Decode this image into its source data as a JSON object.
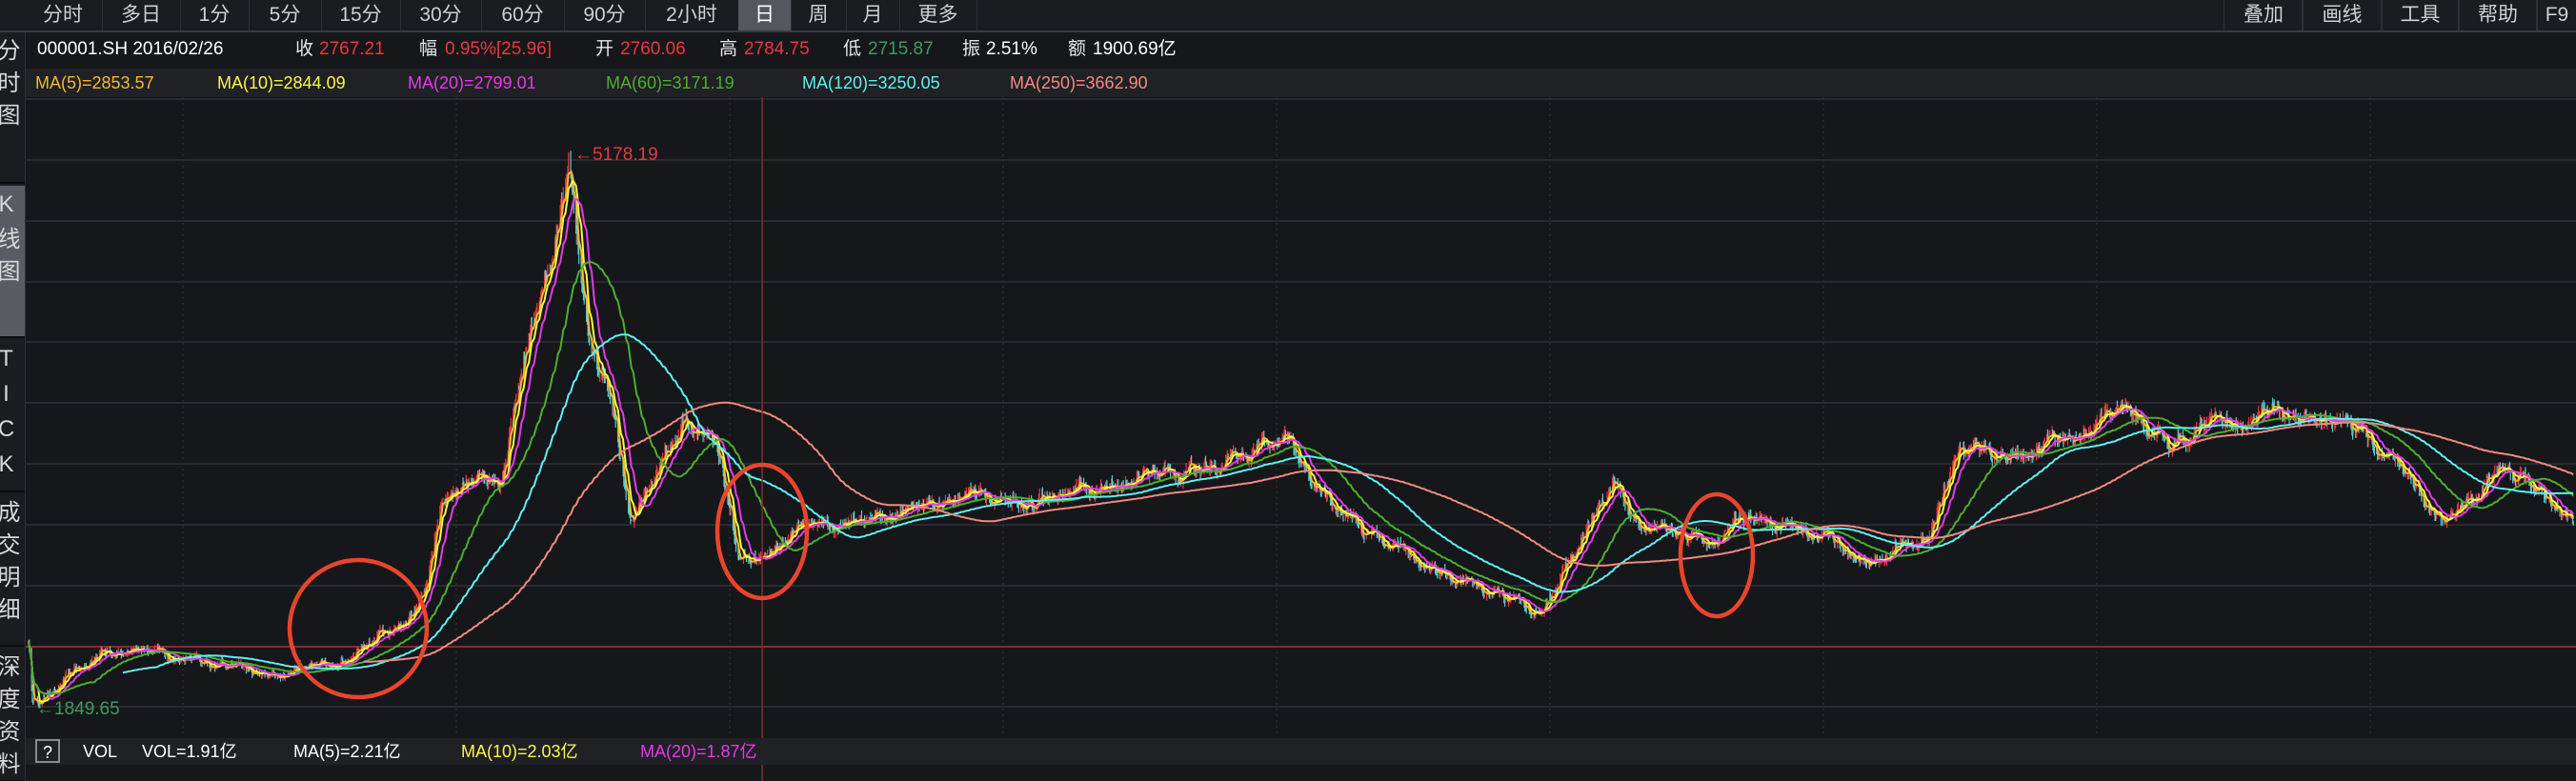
{
  "colors": {
    "up": "#e8373d",
    "down": "#54d0d4",
    "low_text": "#3c9a5e",
    "ma5": "#f5b731",
    "ma10": "#f7f74a",
    "ma20": "#e33ae8",
    "ma60": "#4caf2f",
    "ma120": "#5ef0f0",
    "ma250": "#f08a80",
    "annotation_circle": "#e8452c",
    "crosshair": "#8b2a2a"
  },
  "period_tabs": [
    "分时",
    "多日",
    "1分",
    "5分",
    "15分",
    "30分",
    "60分",
    "90分",
    "2小时",
    "日",
    "周",
    "月",
    "更多"
  ],
  "active_period": "日",
  "tool_tabs": [
    "叠加",
    "画线",
    "工具",
    "帮助",
    "F9"
  ],
  "side_tabs": [
    {
      "label": "分时图",
      "chars": [
        "分",
        "时",
        "图"
      ]
    },
    {
      "label": "K线图",
      "chars": [
        "K",
        "线",
        "图"
      ],
      "active": true
    },
    {
      "label": "TICK",
      "chars": [
        "T",
        "I",
        "C",
        "K"
      ]
    },
    {
      "label": "成交明细",
      "chars": [
        "成",
        "交",
        "明",
        "细"
      ]
    },
    {
      "label": "深度资料",
      "chars": [
        "深",
        "度",
        "资",
        "料"
      ]
    }
  ],
  "info": {
    "code_date": "000001.SH 2016/02/26",
    "close_label": "收",
    "close": "2767.21",
    "change_label": "幅",
    "change": "0.95%[25.96]",
    "open_label": "开",
    "open": "2760.06",
    "high_label": "高",
    "high": "2784.75",
    "low_label": "低",
    "low": "2715.87",
    "amplitude_label": "振",
    "amplitude": "2.51%",
    "amount_label": "额",
    "amount": "1900.69亿"
  },
  "ma_legend": {
    "ma5": "MA(5)=2853.57",
    "ma10": "MA(10)=2844.09",
    "ma20": "MA(20)=2799.01",
    "ma60": "MA(60)=3171.19",
    "ma120": "MA(120)=3250.05",
    "ma250": "MA(250)=3662.90"
  },
  "volume_legend": {
    "help": "?",
    "name": "VOL",
    "vol": "VOL=1.91亿",
    "ma5": "MA(5)=2.21亿",
    "ma10": "MA(10)=2.03亿",
    "ma20": "MA(20)=1.87亿"
  },
  "chart_data": {
    "type": "candlestick",
    "scale": "linear",
    "grid": true,
    "max_label": "←5178.19",
    "min_label": "←1849.65",
    "crosshair_date": "2016-02-26",
    "moving_averages": [
      5,
      10,
      20,
      60,
      120,
      250
    ],
    "annotation_circles": 3,
    "close_anchors": [
      [
        "2013-06-20",
        2230
      ],
      [
        "2013-06-25",
        1849.65
      ],
      [
        "2013-09-10",
        2150
      ],
      [
        "2013-10-25",
        2180
      ],
      [
        "2013-12-26",
        2150
      ],
      [
        "2014-03-01",
        2100
      ],
      [
        "2014-05-01",
        2050
      ],
      [
        "2014-06-26",
        2070
      ],
      [
        "2014-08-20",
        2150
      ],
      [
        "2014-10-23",
        2350
      ],
      [
        "2014-12-02",
        2500
      ],
      [
        "2014-12-26",
        3150
      ],
      [
        "2015-02-08",
        3240
      ],
      [
        "2015-03-12",
        3260
      ],
      [
        "2015-04-23",
        4140
      ],
      [
        "2015-05-24",
        4635
      ],
      [
        "2015-06-12",
        5178.19
      ],
      [
        "2015-07-08",
        4140
      ],
      [
        "2015-08-02",
        3840
      ],
      [
        "2015-09-05",
        2945
      ],
      [
        "2015-10-12",
        3340
      ],
      [
        "2015-11-15",
        3590
      ],
      [
        "2015-12-26",
        3450
      ],
      [
        "2016-01-28",
        2750
      ],
      [
        "2016-02-26",
        2767.21
      ],
      [
        "2016-04-15",
        2945
      ],
      [
        "2016-06-15",
        2950
      ],
      [
        "2016-09-10",
        3050
      ],
      [
        "2016-12-05",
        3150
      ],
      [
        "2017-03-25",
        3100
      ],
      [
        "2017-07-10",
        3240
      ],
      [
        "2017-11-15",
        3340
      ],
      [
        "2018-01-26",
        3490
      ],
      [
        "2018-03-10",
        3150
      ],
      [
        "2018-06-05",
        2850
      ],
      [
        "2018-09-20",
        2600
      ],
      [
        "2019-01-04",
        2440
      ],
      [
        "2019-01-25",
        2600
      ],
      [
        "2019-04-10",
        3200
      ],
      [
        "2019-05-15",
        2945
      ],
      [
        "2019-08-10",
        2850
      ],
      [
        "2019-09-20",
        3000
      ],
      [
        "2019-12-15",
        2945
      ],
      [
        "2020-03-20",
        2750
      ],
      [
        "2020-06-05",
        2900
      ],
      [
        "2020-07-08",
        3390
      ],
      [
        "2020-10-10",
        3390
      ],
      [
        "2021-02-18",
        3640
      ],
      [
        "2021-04-20",
        3450
      ],
      [
        "2021-09-15",
        3640
      ],
      [
        "2021-12-20",
        3590
      ],
      [
        "2022-03-01",
        3300
      ],
      [
        "2022-04-27",
        2945
      ],
      [
        "2022-07-05",
        3300
      ],
      [
        "2022-10-15",
        3000
      ]
    ]
  }
}
